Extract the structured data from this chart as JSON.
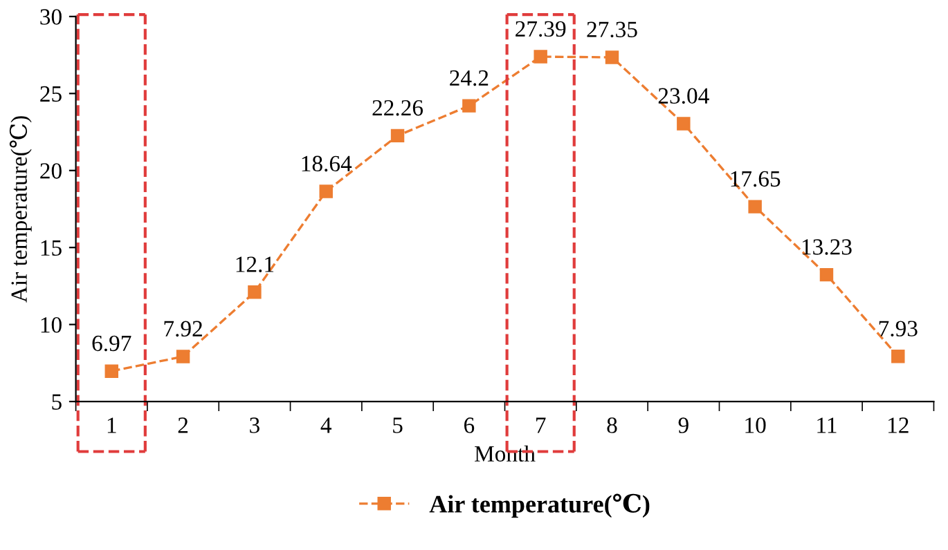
{
  "chart_data": {
    "type": "line",
    "xlabel": "Month",
    "ylabel": "Air temperature(℃)",
    "categories": [
      "1",
      "2",
      "3",
      "4",
      "5",
      "6",
      "7",
      "8",
      "9",
      "10",
      "11",
      "12"
    ],
    "series": [
      {
        "name": "Air temperature(℃)",
        "color": "#ed7d31",
        "values": [
          6.97,
          7.92,
          12.1,
          18.64,
          22.26,
          24.2,
          27.39,
          27.35,
          23.04,
          17.65,
          13.23,
          7.93
        ]
      }
    ],
    "ylim": [
      5,
      30
    ],
    "yticks": [
      5,
      10,
      15,
      20,
      25,
      30
    ],
    "grid": false,
    "legend": "bottom",
    "marker": "square",
    "line_style": "dashed",
    "data_labels": true
  }
}
